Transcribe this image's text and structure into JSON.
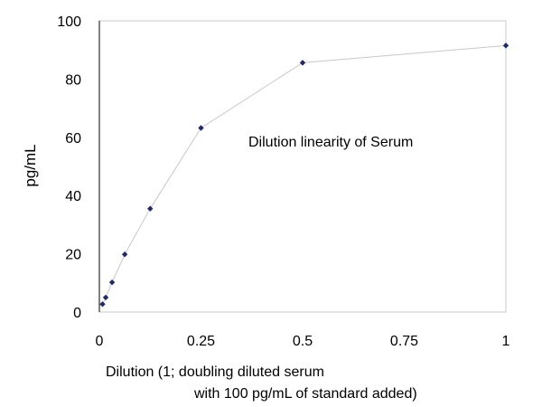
{
  "chart_data": {
    "type": "scatter",
    "title": "",
    "annotation": "Dilution linearity of Serum",
    "xlabel_line1": "Dilution (1; doubling diluted serum",
    "xlabel_line2": "with 100 pg/mL of standard added)",
    "ylabel": "pg/mL",
    "xlim": [
      0,
      1
    ],
    "ylim": [
      0,
      100
    ],
    "x_ticks": [
      "0",
      "0.25",
      "0.5",
      "0.75",
      "1"
    ],
    "y_ticks": [
      "0",
      "20",
      "40",
      "60",
      "80",
      "100"
    ],
    "grid": false,
    "legend": "none",
    "line_color": "#c8c8c8",
    "marker_color": "#1f2a6b",
    "series": [
      {
        "x": [
          0.0078125,
          0.015625,
          0.03125,
          0.0625,
          0.125,
          0.25,
          0.5,
          1
        ],
        "y": [
          2.7,
          5.0,
          10.2,
          19.8,
          35.5,
          63.2,
          85.6,
          91.5
        ]
      }
    ]
  }
}
